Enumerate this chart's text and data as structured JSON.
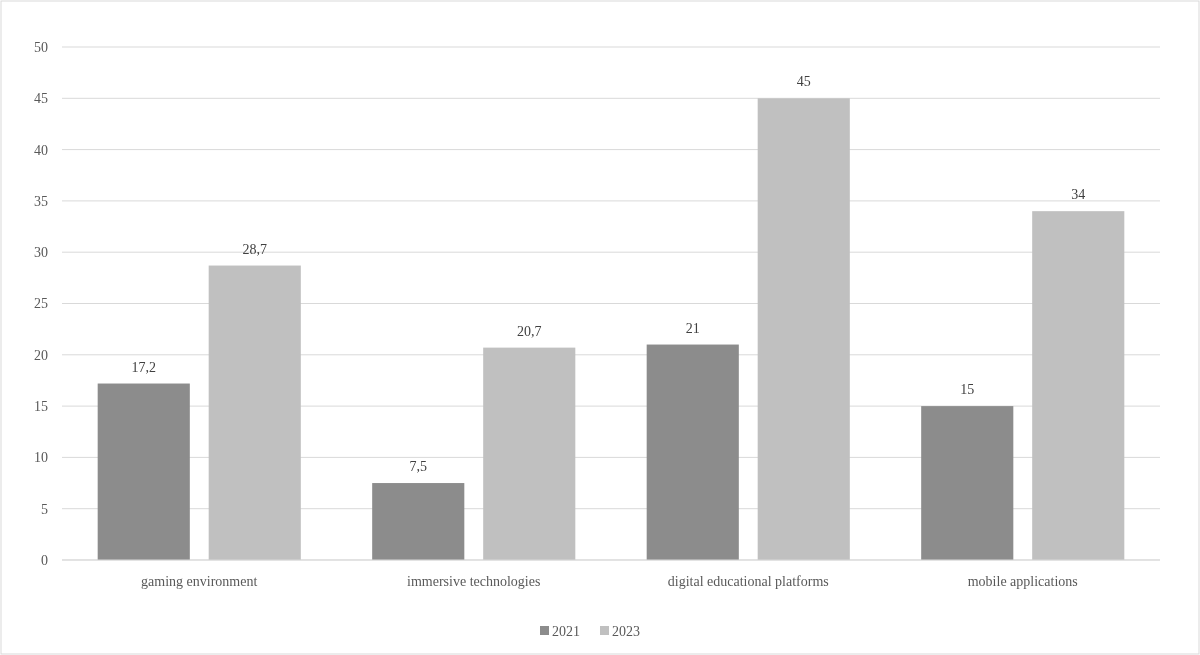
{
  "chart_data": {
    "type": "bar",
    "categories": [
      "gaming environment",
      "immersive technologies",
      "digital educational platforms",
      "mobile applications"
    ],
    "series": [
      {
        "name": "2021",
        "color": "#8c8c8c",
        "values": [
          17.2,
          7.5,
          21,
          15
        ],
        "value_labels": [
          "17,2",
          "7,5",
          "21",
          "15"
        ]
      },
      {
        "name": "2023",
        "color": "#c0c0c0",
        "values": [
          28.7,
          20.7,
          45,
          34
        ],
        "value_labels": [
          "28,7",
          "20,7",
          "45",
          "34"
        ]
      }
    ],
    "ylim": [
      0,
      50
    ],
    "yticks": [
      0,
      5,
      10,
      15,
      20,
      25,
      30,
      35,
      40,
      45,
      50
    ],
    "grid": "y",
    "legend": "bottom"
  }
}
